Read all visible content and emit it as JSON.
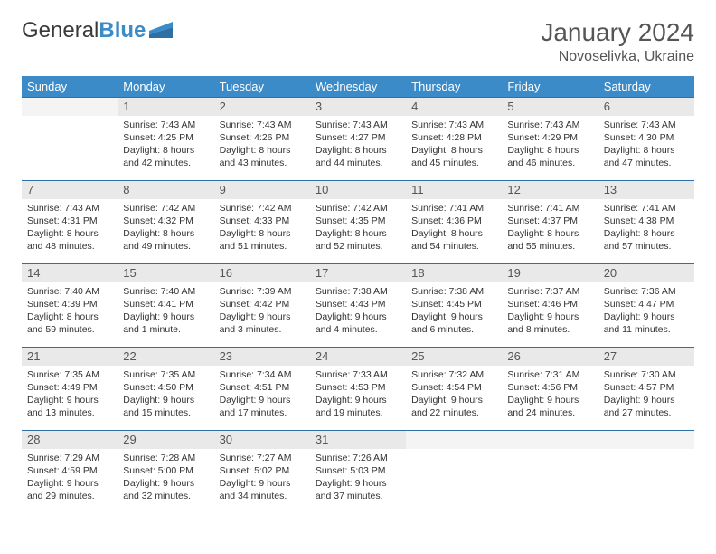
{
  "logo": {
    "text1": "General",
    "text2": "Blue"
  },
  "title": "January 2024",
  "location": "Novoselivka, Ukraine",
  "colors": {
    "header_bg": "#3b8bc9",
    "header_text": "#ffffff",
    "daynum_bg": "#e9e9e9",
    "daynum_text": "#555555",
    "row_border": "#2f6fa3",
    "body_text": "#333333",
    "title_text": "#555555"
  },
  "day_headers": [
    "Sunday",
    "Monday",
    "Tuesday",
    "Wednesday",
    "Thursday",
    "Friday",
    "Saturday"
  ],
  "weeks": [
    {
      "nums": [
        "",
        "1",
        "2",
        "3",
        "4",
        "5",
        "6"
      ],
      "cells": [
        null,
        {
          "sunrise": "Sunrise: 7:43 AM",
          "sunset": "Sunset: 4:25 PM",
          "daylight": "Daylight: 8 hours and 42 minutes."
        },
        {
          "sunrise": "Sunrise: 7:43 AM",
          "sunset": "Sunset: 4:26 PM",
          "daylight": "Daylight: 8 hours and 43 minutes."
        },
        {
          "sunrise": "Sunrise: 7:43 AM",
          "sunset": "Sunset: 4:27 PM",
          "daylight": "Daylight: 8 hours and 44 minutes."
        },
        {
          "sunrise": "Sunrise: 7:43 AM",
          "sunset": "Sunset: 4:28 PM",
          "daylight": "Daylight: 8 hours and 45 minutes."
        },
        {
          "sunrise": "Sunrise: 7:43 AM",
          "sunset": "Sunset: 4:29 PM",
          "daylight": "Daylight: 8 hours and 46 minutes."
        },
        {
          "sunrise": "Sunrise: 7:43 AM",
          "sunset": "Sunset: 4:30 PM",
          "daylight": "Daylight: 8 hours and 47 minutes."
        }
      ]
    },
    {
      "nums": [
        "7",
        "8",
        "9",
        "10",
        "11",
        "12",
        "13"
      ],
      "cells": [
        {
          "sunrise": "Sunrise: 7:43 AM",
          "sunset": "Sunset: 4:31 PM",
          "daylight": "Daylight: 8 hours and 48 minutes."
        },
        {
          "sunrise": "Sunrise: 7:42 AM",
          "sunset": "Sunset: 4:32 PM",
          "daylight": "Daylight: 8 hours and 49 minutes."
        },
        {
          "sunrise": "Sunrise: 7:42 AM",
          "sunset": "Sunset: 4:33 PM",
          "daylight": "Daylight: 8 hours and 51 minutes."
        },
        {
          "sunrise": "Sunrise: 7:42 AM",
          "sunset": "Sunset: 4:35 PM",
          "daylight": "Daylight: 8 hours and 52 minutes."
        },
        {
          "sunrise": "Sunrise: 7:41 AM",
          "sunset": "Sunset: 4:36 PM",
          "daylight": "Daylight: 8 hours and 54 minutes."
        },
        {
          "sunrise": "Sunrise: 7:41 AM",
          "sunset": "Sunset: 4:37 PM",
          "daylight": "Daylight: 8 hours and 55 minutes."
        },
        {
          "sunrise": "Sunrise: 7:41 AM",
          "sunset": "Sunset: 4:38 PM",
          "daylight": "Daylight: 8 hours and 57 minutes."
        }
      ]
    },
    {
      "nums": [
        "14",
        "15",
        "16",
        "17",
        "18",
        "19",
        "20"
      ],
      "cells": [
        {
          "sunrise": "Sunrise: 7:40 AM",
          "sunset": "Sunset: 4:39 PM",
          "daylight": "Daylight: 8 hours and 59 minutes."
        },
        {
          "sunrise": "Sunrise: 7:40 AM",
          "sunset": "Sunset: 4:41 PM",
          "daylight": "Daylight: 9 hours and 1 minute."
        },
        {
          "sunrise": "Sunrise: 7:39 AM",
          "sunset": "Sunset: 4:42 PM",
          "daylight": "Daylight: 9 hours and 3 minutes."
        },
        {
          "sunrise": "Sunrise: 7:38 AM",
          "sunset": "Sunset: 4:43 PM",
          "daylight": "Daylight: 9 hours and 4 minutes."
        },
        {
          "sunrise": "Sunrise: 7:38 AM",
          "sunset": "Sunset: 4:45 PM",
          "daylight": "Daylight: 9 hours and 6 minutes."
        },
        {
          "sunrise": "Sunrise: 7:37 AM",
          "sunset": "Sunset: 4:46 PM",
          "daylight": "Daylight: 9 hours and 8 minutes."
        },
        {
          "sunrise": "Sunrise: 7:36 AM",
          "sunset": "Sunset: 4:47 PM",
          "daylight": "Daylight: 9 hours and 11 minutes."
        }
      ]
    },
    {
      "nums": [
        "21",
        "22",
        "23",
        "24",
        "25",
        "26",
        "27"
      ],
      "cells": [
        {
          "sunrise": "Sunrise: 7:35 AM",
          "sunset": "Sunset: 4:49 PM",
          "daylight": "Daylight: 9 hours and 13 minutes."
        },
        {
          "sunrise": "Sunrise: 7:35 AM",
          "sunset": "Sunset: 4:50 PM",
          "daylight": "Daylight: 9 hours and 15 minutes."
        },
        {
          "sunrise": "Sunrise: 7:34 AM",
          "sunset": "Sunset: 4:51 PM",
          "daylight": "Daylight: 9 hours and 17 minutes."
        },
        {
          "sunrise": "Sunrise: 7:33 AM",
          "sunset": "Sunset: 4:53 PM",
          "daylight": "Daylight: 9 hours and 19 minutes."
        },
        {
          "sunrise": "Sunrise: 7:32 AM",
          "sunset": "Sunset: 4:54 PM",
          "daylight": "Daylight: 9 hours and 22 minutes."
        },
        {
          "sunrise": "Sunrise: 7:31 AM",
          "sunset": "Sunset: 4:56 PM",
          "daylight": "Daylight: 9 hours and 24 minutes."
        },
        {
          "sunrise": "Sunrise: 7:30 AM",
          "sunset": "Sunset: 4:57 PM",
          "daylight": "Daylight: 9 hours and 27 minutes."
        }
      ]
    },
    {
      "nums": [
        "28",
        "29",
        "30",
        "31",
        "",
        "",
        ""
      ],
      "cells": [
        {
          "sunrise": "Sunrise: 7:29 AM",
          "sunset": "Sunset: 4:59 PM",
          "daylight": "Daylight: 9 hours and 29 minutes."
        },
        {
          "sunrise": "Sunrise: 7:28 AM",
          "sunset": "Sunset: 5:00 PM",
          "daylight": "Daylight: 9 hours and 32 minutes."
        },
        {
          "sunrise": "Sunrise: 7:27 AM",
          "sunset": "Sunset: 5:02 PM",
          "daylight": "Daylight: 9 hours and 34 minutes."
        },
        {
          "sunrise": "Sunrise: 7:26 AM",
          "sunset": "Sunset: 5:03 PM",
          "daylight": "Daylight: 9 hours and 37 minutes."
        },
        null,
        null,
        null
      ]
    }
  ]
}
